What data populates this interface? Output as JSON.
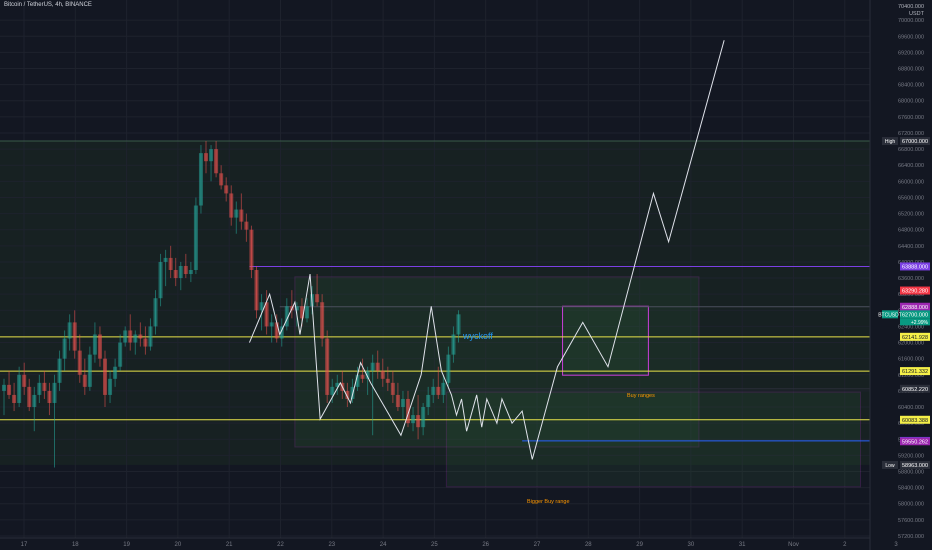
{
  "header": {
    "title": "Bitcoin / TetherUS, 4h, BINANCE",
    "price_axis_currency": "70400.000\nUSDT"
  },
  "chart_data": {
    "type": "candlestick",
    "x_tick_labels": [
      "17",
      "18",
      "19",
      "20",
      "21",
      "22",
      "23",
      "24",
      "25",
      "26",
      "27",
      "28",
      "29",
      "30",
      "31",
      "Nov",
      "2",
      "3"
    ],
    "y_ticks": [
      70000,
      69600,
      69200,
      68800,
      68400,
      68000,
      67600,
      67200,
      66800,
      66400,
      66000,
      65600,
      65200,
      64800,
      64400,
      64000,
      63600,
      63200,
      62800,
      62400,
      62000,
      61600,
      61200,
      60800,
      60400,
      60000,
      59600,
      59200,
      58800,
      58400,
      58000,
      57600,
      57200
    ],
    "ylim": [
      57150,
      70450
    ],
    "price_labels": [
      {
        "label": "High",
        "value": 67000,
        "text": "67000.000",
        "color": "#2a2e39",
        "tag": true
      },
      {
        "label": "",
        "value": 63888,
        "text": "63888.000",
        "color": "#7b3fe4"
      },
      {
        "label": "",
        "value": 63290.28,
        "text": "63290.280",
        "color": "#f23645"
      },
      {
        "label": "",
        "value": 62888,
        "text": "62888.000",
        "color": "#9c27b0"
      },
      {
        "label": "BTCUSDT",
        "value": 62700,
        "text": "62700.000",
        "sub": "+2.99%",
        "color": "#089981",
        "tag": true
      },
      {
        "label": "",
        "value": 62141.928,
        "text": "62141.928",
        "color": "#f5f049",
        "dark": true
      },
      {
        "label": "",
        "value": 61291.332,
        "text": "61291.332",
        "color": "#f5f049",
        "dark": true
      },
      {
        "label": "",
        "value": 60852.22,
        "text": "60852.220",
        "color": "#2a2e39"
      },
      {
        "label": "",
        "value": 60083.388,
        "text": "60083.388",
        "color": "#f5f049",
        "dark": true
      },
      {
        "label": "",
        "value": 59558.49,
        "text": "59558.490",
        "color": "#2962ff"
      },
      {
        "label": "",
        "value": 59550.262,
        "text": "59550.262",
        "color": "#9c27b0"
      },
      {
        "label": "Low",
        "value": 58963,
        "text": "58963.000",
        "color": "#2a2e39",
        "tag": true
      }
    ],
    "annotations": [
      {
        "text": "wyckoff",
        "color": "#2196f3"
      },
      {
        "text": "Buy ranges",
        "color": "#ff9800"
      },
      {
        "text": "Bigger Buy range",
        "color": "#ff9800"
      }
    ],
    "candles": [
      {
        "o": 60800,
        "h": 61100,
        "l": 60200,
        "c": 60950
      },
      {
        "o": 60950,
        "h": 61300,
        "l": 60600,
        "c": 60700
      },
      {
        "o": 60700,
        "h": 61000,
        "l": 60300,
        "c": 60500
      },
      {
        "o": 60500,
        "h": 61400,
        "l": 60400,
        "c": 61200
      },
      {
        "o": 61200,
        "h": 61500,
        "l": 60700,
        "c": 60900
      },
      {
        "o": 60900,
        "h": 61100,
        "l": 60300,
        "c": 60400
      },
      {
        "o": 60400,
        "h": 60900,
        "l": 59800,
        "c": 60700
      },
      {
        "o": 60700,
        "h": 61200,
        "l": 60500,
        "c": 61000
      },
      {
        "o": 61000,
        "h": 61300,
        "l": 60600,
        "c": 60800
      },
      {
        "o": 60800,
        "h": 61000,
        "l": 60200,
        "c": 60500
      },
      {
        "o": 60500,
        "h": 61200,
        "l": 58900,
        "c": 61000
      },
      {
        "o": 61000,
        "h": 61800,
        "l": 60800,
        "c": 61600
      },
      {
        "o": 61600,
        "h": 62300,
        "l": 61300,
        "c": 62100
      },
      {
        "o": 62100,
        "h": 62700,
        "l": 61800,
        "c": 62500
      },
      {
        "o": 62500,
        "h": 62800,
        "l": 61600,
        "c": 61800
      },
      {
        "o": 61800,
        "h": 62200,
        "l": 61000,
        "c": 61200
      },
      {
        "o": 61200,
        "h": 61600,
        "l": 60700,
        "c": 60900
      },
      {
        "o": 60900,
        "h": 61900,
        "l": 60800,
        "c": 61700
      },
      {
        "o": 61700,
        "h": 62500,
        "l": 61500,
        "c": 62200
      },
      {
        "o": 62200,
        "h": 62400,
        "l": 61400,
        "c": 61600
      },
      {
        "o": 61600,
        "h": 61800,
        "l": 60400,
        "c": 60700
      },
      {
        "o": 60700,
        "h": 61300,
        "l": 60500,
        "c": 61100
      },
      {
        "o": 61100,
        "h": 61600,
        "l": 60900,
        "c": 61400
      },
      {
        "o": 61400,
        "h": 62200,
        "l": 61300,
        "c": 62000
      },
      {
        "o": 62000,
        "h": 62400,
        "l": 61900,
        "c": 62300
      },
      {
        "o": 62300,
        "h": 62700,
        "l": 61800,
        "c": 62000
      },
      {
        "o": 62000,
        "h": 62300,
        "l": 61700,
        "c": 62200
      },
      {
        "o": 62200,
        "h": 62500,
        "l": 61900,
        "c": 62100
      },
      {
        "o": 62100,
        "h": 62400,
        "l": 61700,
        "c": 61900
      },
      {
        "o": 61900,
        "h": 62600,
        "l": 61800,
        "c": 62400
      },
      {
        "o": 62400,
        "h": 63300,
        "l": 62200,
        "c": 63100
      },
      {
        "o": 63100,
        "h": 64200,
        "l": 62900,
        "c": 64000
      },
      {
        "o": 64000,
        "h": 64300,
        "l": 63400,
        "c": 64100
      },
      {
        "o": 64100,
        "h": 64400,
        "l": 63600,
        "c": 63800
      },
      {
        "o": 63800,
        "h": 64100,
        "l": 63400,
        "c": 63600
      },
      {
        "o": 63600,
        "h": 64000,
        "l": 63300,
        "c": 63900
      },
      {
        "o": 63900,
        "h": 64200,
        "l": 63600,
        "c": 63700
      },
      {
        "o": 63700,
        "h": 64000,
        "l": 63500,
        "c": 63800
      },
      {
        "o": 63800,
        "h": 65600,
        "l": 63700,
        "c": 65400
      },
      {
        "o": 65400,
        "h": 66900,
        "l": 65200,
        "c": 66700
      },
      {
        "o": 66700,
        "h": 67000,
        "l": 66200,
        "c": 66500
      },
      {
        "o": 66500,
        "h": 66900,
        "l": 66000,
        "c": 66800
      },
      {
        "o": 66800,
        "h": 67000,
        "l": 66100,
        "c": 66200
      },
      {
        "o": 66200,
        "h": 66400,
        "l": 65800,
        "c": 65900
      },
      {
        "o": 65900,
        "h": 66100,
        "l": 65500,
        "c": 65700
      },
      {
        "o": 65700,
        "h": 65900,
        "l": 64900,
        "c": 65100
      },
      {
        "o": 65100,
        "h": 65500,
        "l": 64700,
        "c": 65300
      },
      {
        "o": 65300,
        "h": 65700,
        "l": 64800,
        "c": 65000
      },
      {
        "o": 65000,
        "h": 65200,
        "l": 64500,
        "c": 64800
      },
      {
        "o": 64800,
        "h": 64900,
        "l": 63600,
        "c": 63800
      },
      {
        "o": 63800,
        "h": 63900,
        "l": 62600,
        "c": 62800
      },
      {
        "o": 62800,
        "h": 63200,
        "l": 62300,
        "c": 63000
      },
      {
        "o": 63000,
        "h": 63300,
        "l": 62200,
        "c": 62400
      },
      {
        "o": 62400,
        "h": 62700,
        "l": 62000,
        "c": 62500
      },
      {
        "o": 62500,
        "h": 62700,
        "l": 62000,
        "c": 62100
      },
      {
        "o": 62100,
        "h": 62600,
        "l": 61900,
        "c": 62400
      },
      {
        "o": 62400,
        "h": 63100,
        "l": 62300,
        "c": 62900
      },
      {
        "o": 62900,
        "h": 63300,
        "l": 62600,
        "c": 62800
      },
      {
        "o": 62800,
        "h": 63000,
        "l": 62400,
        "c": 62900
      },
      {
        "o": 62900,
        "h": 63100,
        "l": 62400,
        "c": 62600
      },
      {
        "o": 62600,
        "h": 63100,
        "l": 62500,
        "c": 62900
      },
      {
        "o": 62900,
        "h": 63400,
        "l": 62700,
        "c": 63200
      },
      {
        "o": 63200,
        "h": 63700,
        "l": 62900,
        "c": 63000
      },
      {
        "o": 63000,
        "h": 63200,
        "l": 61900,
        "c": 62100
      },
      {
        "o": 62100,
        "h": 62300,
        "l": 60500,
        "c": 60700
      },
      {
        "o": 60700,
        "h": 61100,
        "l": 60500,
        "c": 60900
      },
      {
        "o": 60900,
        "h": 61200,
        "l": 60700,
        "c": 61000
      },
      {
        "o": 61000,
        "h": 61300,
        "l": 60600,
        "c": 60800
      },
      {
        "o": 60800,
        "h": 61000,
        "l": 60400,
        "c": 60600
      },
      {
        "o": 60600,
        "h": 61100,
        "l": 60500,
        "c": 60900
      },
      {
        "o": 60900,
        "h": 61400,
        "l": 60800,
        "c": 61200
      },
      {
        "o": 61200,
        "h": 61600,
        "l": 61000,
        "c": 61100
      },
      {
        "o": 61100,
        "h": 61400,
        "l": 60700,
        "c": 61300
      },
      {
        "o": 61300,
        "h": 61700,
        "l": 59700,
        "c": 61500
      },
      {
        "o": 61500,
        "h": 61800,
        "l": 61100,
        "c": 61300
      },
      {
        "o": 61300,
        "h": 61600,
        "l": 60900,
        "c": 61100
      },
      {
        "o": 61100,
        "h": 61400,
        "l": 60800,
        "c": 61000
      },
      {
        "o": 61000,
        "h": 61300,
        "l": 60500,
        "c": 60700
      },
      {
        "o": 60700,
        "h": 61000,
        "l": 60300,
        "c": 60400
      },
      {
        "o": 60400,
        "h": 60800,
        "l": 60100,
        "c": 60600
      },
      {
        "o": 60600,
        "h": 60800,
        "l": 59900,
        "c": 60000
      },
      {
        "o": 60000,
        "h": 60400,
        "l": 59800,
        "c": 60200
      },
      {
        "o": 60200,
        "h": 60700,
        "l": 59600,
        "c": 59900
      },
      {
        "o": 59900,
        "h": 60500,
        "l": 59700,
        "c": 60400
      },
      {
        "o": 60400,
        "h": 60900,
        "l": 60200,
        "c": 60700
      },
      {
        "o": 60700,
        "h": 61100,
        "l": 60500,
        "c": 60900
      },
      {
        "o": 60900,
        "h": 61400,
        "l": 60600,
        "c": 60700
      },
      {
        "o": 60700,
        "h": 61200,
        "l": 60500,
        "c": 61000
      },
      {
        "o": 61000,
        "h": 61900,
        "l": 60900,
        "c": 61700
      },
      {
        "o": 61700,
        "h": 62400,
        "l": 61500,
        "c": 62200
      },
      {
        "o": 62200,
        "h": 62800,
        "l": 62000,
        "c": 62700
      }
    ],
    "wyckoff_path": [
      [
        49,
        62000
      ],
      [
        53,
        63200
      ],
      [
        55,
        62200
      ],
      [
        58,
        63000
      ],
      [
        59,
        62200
      ],
      [
        61,
        63700
      ],
      [
        63,
        60100
      ],
      [
        67,
        61000
      ],
      [
        69,
        60500
      ],
      [
        71,
        61500
      ],
      [
        73,
        61000
      ],
      [
        79,
        59700
      ],
      [
        83,
        61200
      ],
      [
        85,
        62900
      ],
      [
        87,
        61300
      ],
      [
        89,
        60700
      ],
      [
        90,
        60200
      ],
      [
        91,
        60600
      ],
      [
        92,
        59800
      ],
      [
        94,
        60700
      ],
      [
        95,
        59900
      ],
      [
        96,
        60600
      ],
      [
        98,
        60000
      ],
      [
        99,
        60600
      ],
      [
        101,
        60000
      ],
      [
        103,
        60300
      ],
      [
        105,
        59100
      ],
      [
        110,
        61400
      ],
      [
        115,
        62500
      ],
      [
        120,
        61400
      ],
      [
        129,
        65700
      ],
      [
        132,
        64500
      ],
      [
        143,
        69500
      ]
    ],
    "rects": [
      {
        "name": "purple-box-main",
        "x0": 49,
        "x1": 138,
        "y0": 63888,
        "y1": 63888,
        "line": true
      },
      {
        "name": "wyckoff-range",
        "x0": 58,
        "x1": 138,
        "y0": 63630,
        "y1": 59410,
        "color": "#c53fd6"
      },
      {
        "name": "buy-range-box",
        "x0": 111,
        "x1": 128,
        "y0": 62900,
        "y1": 61190,
        "color": "#c53fd6"
      },
      {
        "name": "bigger-buy-range-box",
        "x0": 88,
        "x1": 170,
        "y0": 60770,
        "y1": 58420,
        "color": "#c53fd6"
      }
    ]
  }
}
